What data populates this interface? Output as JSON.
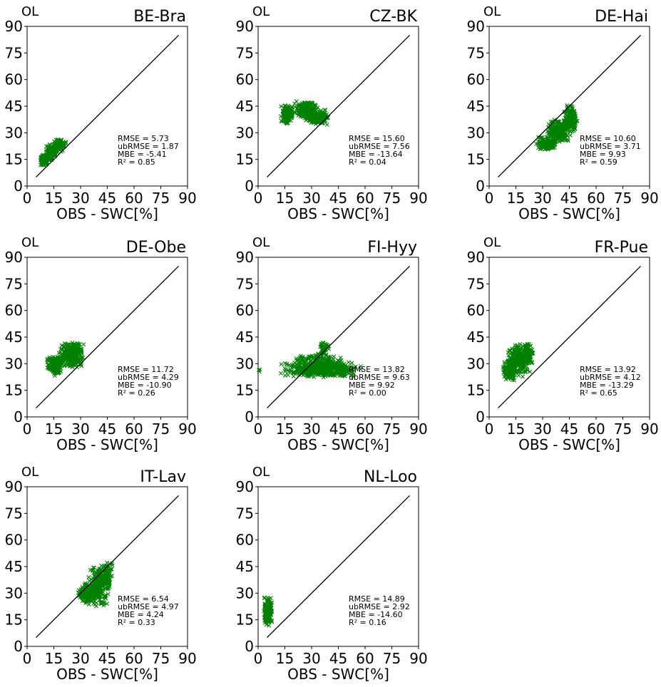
{
  "figure": {
    "colors": {
      "points": "#008000",
      "line": "#000000",
      "axes": "#000000",
      "background": "#ffffff"
    }
  },
  "chart_data": [
    {
      "type": "scatter",
      "title": "BE-Bra",
      "corner_label": "OL",
      "xlabel": "OBS - SWC[%]",
      "ylabel": "",
      "xlim": [
        0,
        90
      ],
      "ylim": [
        0,
        90
      ],
      "ticks": [
        0,
        15,
        30,
        45,
        60,
        75,
        90
      ],
      "grid": false,
      "identity_line": [
        [
          5,
          5
        ],
        [
          85,
          85
        ]
      ],
      "clusters": [
        {
          "x_range": [
            7,
            12
          ],
          "y_range": [
            11,
            18
          ],
          "count": 90
        },
        {
          "x_range": [
            10,
            17
          ],
          "y_range": [
            14,
            24
          ],
          "count": 110
        },
        {
          "x_range": [
            15,
            22
          ],
          "y_range": [
            19,
            27
          ],
          "count": 90
        }
      ],
      "stats": [
        "RMSE = 5.73",
        "ubRMSE = 1.87",
        "MBE = -5.41",
        "R² = 0.85"
      ]
    },
    {
      "type": "scatter",
      "title": "CZ-BK",
      "corner_label": "OL",
      "xlabel": "OBS - SWC[%]",
      "ylabel": "",
      "xlim": [
        0,
        90
      ],
      "ylim": [
        0,
        90
      ],
      "ticks": [
        0,
        15,
        30,
        45,
        60,
        75,
        90
      ],
      "grid": false,
      "identity_line": [
        [
          5,
          5
        ],
        [
          85,
          85
        ]
      ],
      "clusters": [
        {
          "x_range": [
            12,
            20
          ],
          "y_range": [
            35,
            46
          ],
          "count": 120
        },
        {
          "x_range": [
            20,
            34
          ],
          "y_range": [
            37,
            48
          ],
          "count": 180
        },
        {
          "x_range": [
            26,
            40
          ],
          "y_range": [
            33,
            44
          ],
          "count": 150
        }
      ],
      "stats": [
        "RMSE = 15.60",
        "ubRMSE = 7.56",
        "MBE = -13.64",
        "R² = 0.04"
      ]
    },
    {
      "type": "scatter",
      "title": "DE-Hai",
      "corner_label": "OL",
      "xlabel": "OBS - SWC[%]",
      "ylabel": "",
      "xlim": [
        0,
        90
      ],
      "ylim": [
        0,
        90
      ],
      "ticks": [
        0,
        15,
        30,
        45,
        60,
        75,
        90
      ],
      "grid": false,
      "identity_line": [
        [
          5,
          5
        ],
        [
          85,
          85
        ]
      ],
      "clusters": [
        {
          "x_range": [
            26,
            38
          ],
          "y_range": [
            20,
            28
          ],
          "count": 130
        },
        {
          "x_range": [
            32,
            46
          ],
          "y_range": [
            24,
            38
          ],
          "count": 200
        },
        {
          "x_range": [
            42,
            50
          ],
          "y_range": [
            30,
            46
          ],
          "count": 130
        }
      ],
      "stats": [
        "RMSE = 10.60",
        "ubRMSE = 3.71",
        "MBE = 9.93",
        "R² = 0.59"
      ]
    },
    {
      "type": "scatter",
      "title": "DE-Obe",
      "corner_label": "OL",
      "xlabel": "OBS - SWC[%]",
      "ylabel": "",
      "xlim": [
        0,
        90
      ],
      "ylim": [
        0,
        90
      ],
      "ticks": [
        0,
        15,
        30,
        45,
        60,
        75,
        90
      ],
      "grid": false,
      "identity_line": [
        [
          5,
          5
        ],
        [
          85,
          85
        ]
      ],
      "clusters": [
        {
          "x_range": [
            11,
            20
          ],
          "y_range": [
            23,
            35
          ],
          "count": 150
        },
        {
          "x_range": [
            17,
            32
          ],
          "y_range": [
            27,
            43
          ],
          "count": 240
        },
        {
          "x_range": [
            22,
            31
          ],
          "y_range": [
            30,
            43
          ],
          "count": 110
        }
      ],
      "stats": [
        "RMSE = 11.72",
        "ubRMSE = 4.29",
        "MBE = -10.90",
        "R² = 0.26"
      ]
    },
    {
      "type": "scatter",
      "title": "FI-Hyy",
      "corner_label": "OL",
      "xlabel": "OBS - SWC[%]",
      "ylabel": "",
      "xlim": [
        0,
        90
      ],
      "ylim": [
        0,
        90
      ],
      "ticks": [
        0,
        15,
        30,
        45,
        60,
        75,
        90
      ],
      "grid": false,
      "identity_line": [
        [
          5,
          5
        ],
        [
          85,
          85
        ]
      ],
      "clusters": [
        {
          "x_range": [
            12,
            58
          ],
          "y_range": [
            22,
            31
          ],
          "count": 420
        },
        {
          "x_range": [
            20,
            50
          ],
          "y_range": [
            25,
            36
          ],
          "count": 200
        },
        {
          "x_range": [
            34,
            40
          ],
          "y_range": [
            32,
            44
          ],
          "count": 45
        },
        {
          "x_range": [
            0,
            2
          ],
          "y_range": [
            25,
            28
          ],
          "count": 3
        }
      ],
      "stats": [
        "RMSE = 13.82",
        "ubRMSE = 9.63",
        "MBE = 9.92",
        "R² = 0.00"
      ]
    },
    {
      "type": "scatter",
      "title": "FR-Pue",
      "corner_label": "OL",
      "xlabel": "OBS - SWC[%]",
      "ylabel": "",
      "xlim": [
        0,
        90
      ],
      "ylim": [
        0,
        90
      ],
      "ticks": [
        0,
        15,
        30,
        45,
        60,
        75,
        90
      ],
      "grid": false,
      "identity_line": [
        [
          5,
          5
        ],
        [
          85,
          85
        ]
      ],
      "clusters": [
        {
          "x_range": [
            7,
            16
          ],
          "y_range": [
            20,
            32
          ],
          "count": 150
        },
        {
          "x_range": [
            10,
            24
          ],
          "y_range": [
            22,
            42
          ],
          "count": 220
        },
        {
          "x_range": [
            18,
            25
          ],
          "y_range": [
            30,
            42
          ],
          "count": 100
        }
      ],
      "stats": [
        "RMSE = 13.92",
        "ubRMSE = 4.12",
        "MBE = -13.29",
        "R² = 0.65"
      ]
    },
    {
      "type": "scatter",
      "title": "IT-Lav",
      "corner_label": "OL",
      "xlabel": "OBS - SWC[%]",
      "ylabel": "",
      "xlim": [
        0,
        90
      ],
      "ylim": [
        0,
        90
      ],
      "ticks": [
        0,
        15,
        30,
        45,
        60,
        75,
        90
      ],
      "grid": false,
      "identity_line": [
        [
          5,
          5
        ],
        [
          85,
          85
        ]
      ],
      "clusters": [
        {
          "x_range": [
            28,
            40
          ],
          "y_range": [
            24,
            36
          ],
          "count": 170
        },
        {
          "x_range": [
            34,
            47
          ],
          "y_range": [
            22,
            46
          ],
          "count": 230
        },
        {
          "x_range": [
            42,
            48
          ],
          "y_range": [
            32,
            48
          ],
          "count": 90
        }
      ],
      "stats": [
        "RMSE = 6.54",
        "ubRMSE = 4.97",
        "MBE = 4.24",
        "R² = 0.33"
      ]
    },
    {
      "type": "scatter",
      "title": "NL-Loo",
      "corner_label": "OL",
      "xlabel": "OBS - SWC[%]",
      "ylabel": "",
      "xlim": [
        0,
        90
      ],
      "ylim": [
        0,
        90
      ],
      "ticks": [
        0,
        15,
        30,
        45,
        60,
        75,
        90
      ],
      "grid": false,
      "identity_line": [
        [
          5,
          5
        ],
        [
          85,
          85
        ]
      ],
      "clusters": [
        {
          "x_range": [
            3,
            8
          ],
          "y_range": [
            11,
            28
          ],
          "count": 160
        }
      ],
      "stats": [
        "RMSE = 14.89",
        "ubRMSE = 2.92",
        "MBE = -14.60",
        "R² = 0.16"
      ]
    }
  ]
}
